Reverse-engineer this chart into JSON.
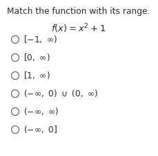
{
  "title": "Match the function with its range.",
  "options": [
    "[−1, ∞)",
    "[0, ∞)",
    "[1, ∞)",
    "(−∞, 0) ∪ (0, ∞)",
    "(−∞, ∞)",
    "(−∞, 0]"
  ],
  "options_math": [
    "[-1,\\ \\infty)",
    "[0,\\ \\infty)",
    "[1,\\ \\infty)",
    "(-\\infty,\\ 0)\\ \\cup\\ (0,\\ \\infty)",
    "(-\\infty,\\ \\infty)",
    "(-\\infty,\\ 0]"
  ],
  "background_color": "#ffffff",
  "text_color": "#2a2a2a",
  "title_fontsize": 8.8,
  "func_fontsize": 9.5,
  "option_fontsize": 8.8,
  "circle_edge_color": "#666666",
  "circle_lw": 0.9
}
